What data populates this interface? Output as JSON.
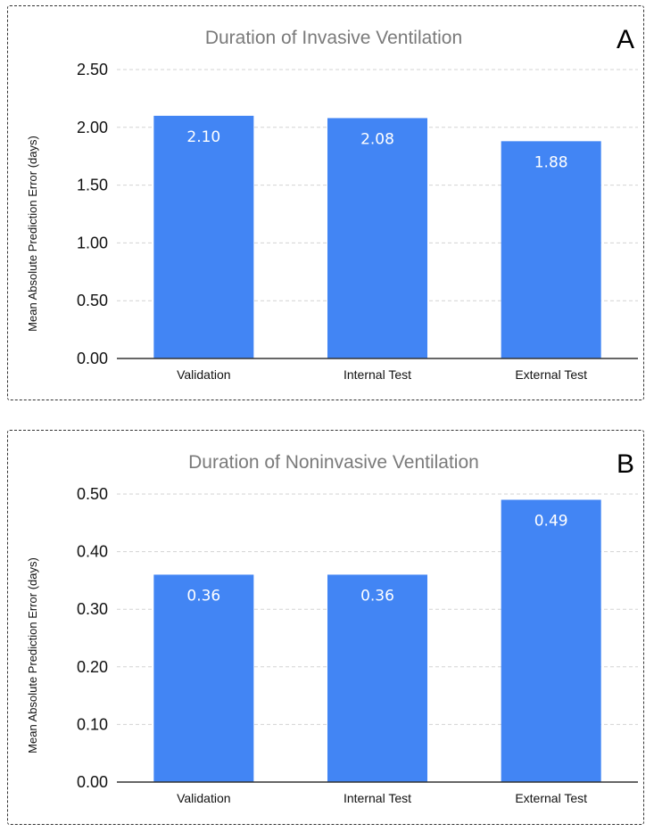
{
  "colors": {
    "bar": "#4285f4",
    "title": "#7a7a7a",
    "grid": "#d3d3d3",
    "text": "#111111"
  },
  "chart_data": [
    {
      "type": "bar",
      "panel_letter": "A",
      "title": "Duration of Invasive Ventilation",
      "xlabel": "",
      "ylabel": "Mean Absolute Prediction Error (days)",
      "categories": [
        "Validation",
        "Internal Test",
        "External Test"
      ],
      "values": [
        2.1,
        2.08,
        1.88
      ],
      "value_labels": [
        "2.10",
        "2.08",
        "1.88"
      ],
      "ylim": [
        0,
        2.5
      ],
      "yticks": [
        0,
        0.5,
        1.0,
        1.5,
        2.0,
        2.5
      ],
      "ytick_labels": [
        "0.00",
        "0.50",
        "1.00",
        "1.50",
        "2.00",
        "2.50"
      ],
      "grid": true
    },
    {
      "type": "bar",
      "panel_letter": "B",
      "title": "Duration of Noninvasive Ventilation",
      "xlabel": "",
      "ylabel": "Mean Absolute Prediction Error (days)",
      "categories": [
        "Validation",
        "Internal Test",
        "External Test"
      ],
      "values": [
        0.36,
        0.36,
        0.49
      ],
      "value_labels": [
        "0.36",
        "0.36",
        "0.49"
      ],
      "ylim": [
        0,
        0.5
      ],
      "yticks": [
        0,
        0.1,
        0.2,
        0.3,
        0.4,
        0.5
      ],
      "ytick_labels": [
        "0.00",
        "0.10",
        "0.20",
        "0.30",
        "0.40",
        "0.50"
      ],
      "grid": true
    }
  ]
}
